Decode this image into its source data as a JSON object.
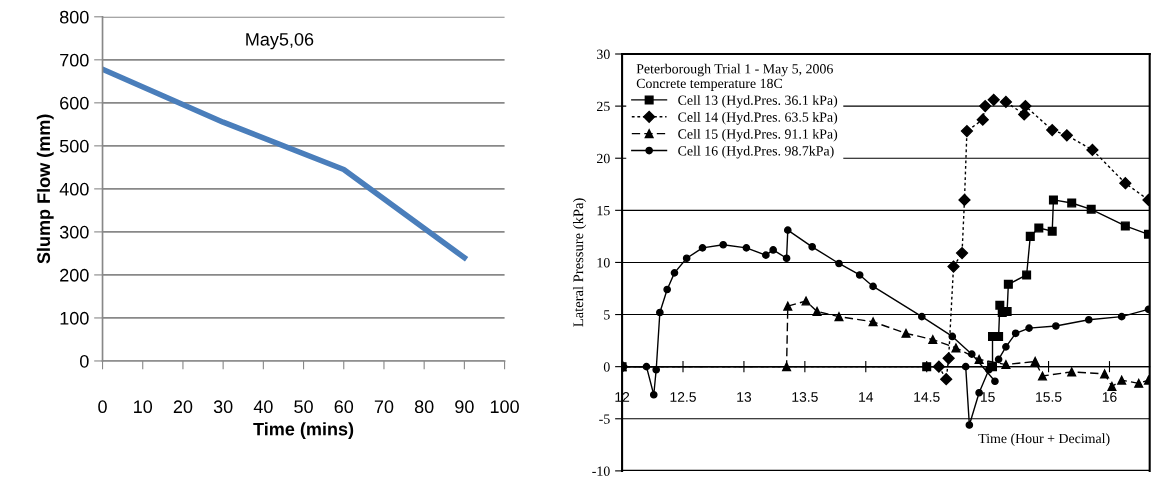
{
  "chart_data": [
    {
      "type": "line",
      "xlabel": "Time (mins)",
      "ylabel": "Slump Flow (mm)",
      "annotations": [
        "May5,06"
      ],
      "x": [
        0,
        30,
        60,
        90
      ],
      "values": [
        678,
        555,
        445,
        240
      ],
      "color": "#4a7ebb",
      "xlim": [
        0,
        100
      ],
      "xticks": [
        0,
        10,
        20,
        30,
        40,
        50,
        60,
        70,
        80,
        90,
        100
      ],
      "ylim": [
        0,
        800
      ],
      "yticks": [
        0,
        100,
        200,
        300,
        400,
        500,
        600,
        700,
        800
      ],
      "grid": "y"
    },
    {
      "type": "line",
      "xlabel": "Time (Hour + Decimal)",
      "ylabel": "Lateral Pressure (kPa)",
      "legend_title": "Peterborough Trial 1 - May 5, 2006\nConcrete temperature 18C",
      "legend": "top left",
      "grid": "y",
      "xlim": [
        12,
        16.33
      ],
      "xticks": [
        12,
        12.5,
        13,
        13.5,
        14,
        14.5,
        15,
        15.5,
        16
      ],
      "ylim": [
        -10,
        30
      ],
      "yticks": [
        -10,
        -5,
        0,
        5,
        10,
        15,
        20,
        25,
        30
      ],
      "series": [
        {
          "name": "Cell 13 (Hyd.Pres. 36.1 kPa)",
          "color": "#000000",
          "marker": "square",
          "line_style": "solid",
          "x": [
            12,
            14.5,
            15.04,
            15.04,
            15.09,
            15.1,
            15.12,
            15.16,
            15.17,
            15.32,
            15.35,
            15.42,
            15.53,
            15.54,
            15.69,
            15.85,
            16.13,
            16.32
          ],
          "values": [
            0,
            0,
            0,
            2.9,
            2.9,
            5.9,
            5.2,
            5.3,
            7.9,
            8.8,
            12.5,
            13.3,
            13.0,
            16.0,
            15.7,
            15.1,
            13.5,
            12.7
          ]
        },
        {
          "name": "Cell 14 (Hyd.Pres. 63.5 kPa)",
          "color": "#000000",
          "marker": "diamond",
          "line_style": "dotted",
          "x": [
            12,
            14.6,
            14.66,
            14.68,
            14.72,
            14.79,
            14.81,
            14.83,
            14.96,
            14.98,
            15.05,
            15.15,
            15.3,
            15.31,
            15.53,
            15.65,
            15.86,
            16.13,
            16.32
          ],
          "values": [
            0,
            0,
            -1.2,
            0.8,
            9.6,
            10.9,
            16.0,
            22.6,
            23.7,
            25.0,
            25.6,
            25.4,
            24.2,
            25.0,
            22.7,
            22.2,
            20.8,
            17.6,
            16.0
          ]
        },
        {
          "name": "Cell 15 (Hyd.Pres. 91.1 kPa)",
          "color": "#000000",
          "marker": "triangle",
          "line_style": "dashed",
          "x": [
            12,
            13.35,
            13.36,
            13.51,
            13.6,
            13.78,
            14.06,
            14.33,
            14.55,
            14.74,
            14.93,
            15.15,
            15.39,
            15.45,
            15.69,
            15.96,
            16.02,
            16.1,
            16.24,
            16.32
          ],
          "values": [
            0,
            0,
            5.8,
            6.3,
            5.3,
            4.8,
            4.3,
            3.2,
            2.6,
            1.8,
            0.7,
            0.2,
            0.5,
            -0.9,
            -0.5,
            -0.7,
            -1.9,
            -1.3,
            -1.6,
            -1.3
          ]
        },
        {
          "name": "Cell 16 (Hyd.Pres. 98.7kPa)",
          "color": "#000000",
          "marker": "circle",
          "line_style": "solid",
          "x": [
            12,
            12.2,
            12.26,
            12.28,
            12.31,
            12.37,
            12.43,
            12.53,
            12.66,
            12.83,
            13.02,
            13.18,
            13.24,
            13.35,
            13.36,
            13.56,
            13.78,
            13.95,
            14.06,
            14.46,
            14.71,
            14.87,
            15.06
          ],
          "values": [
            0,
            0,
            -2.7,
            -0.3,
            5.2,
            7.4,
            9.0,
            10.4,
            11.4,
            11.7,
            11.4,
            10.7,
            11.2,
            10.4,
            13.1,
            11.5,
            9.9,
            8.8,
            7.7,
            4.8,
            2.9,
            1.2,
            -1.4
          ]
        },
        {
          "color": "#000000",
          "marker": "circle",
          "line_style": "solid",
          "x": [
            12,
            14.5,
            14.82,
            14.85,
            14.93,
            15.01,
            15.09,
            15.15,
            15.23,
            15.34,
            15.56,
            15.83,
            16.1,
            16.32
          ],
          "values": [
            0,
            0,
            0,
            -5.6,
            -2.5,
            -0.3,
            0.7,
            1.9,
            3.2,
            3.7,
            3.9,
            4.5,
            4.8,
            5.5
          ]
        }
      ]
    }
  ]
}
